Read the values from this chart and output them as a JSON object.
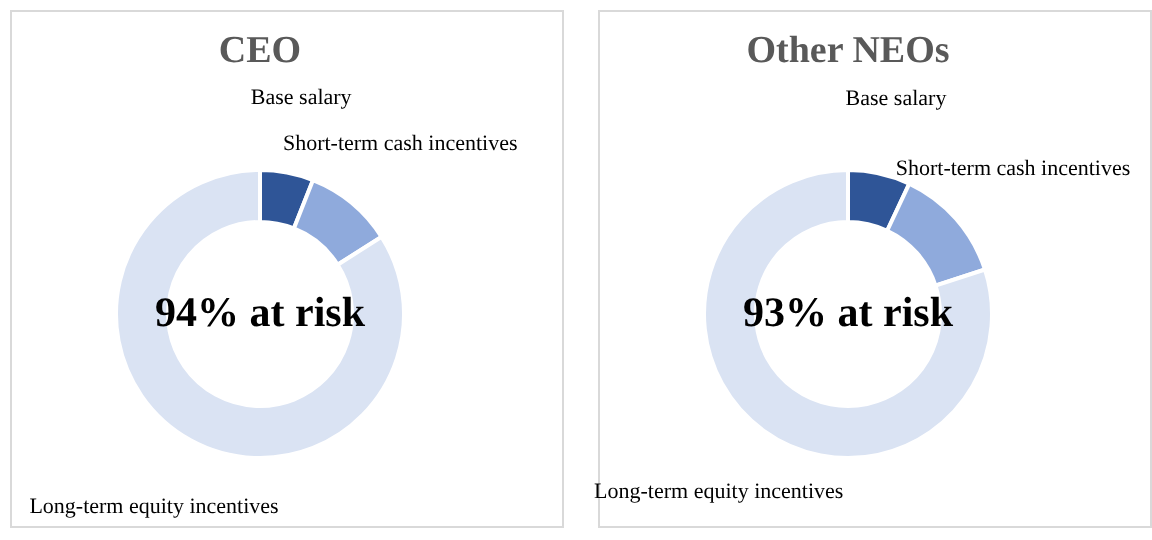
{
  "chart_data": [
    {
      "type": "donut",
      "title": "CEO",
      "categories": [
        "Base salary",
        "Short-term cash incentives",
        "Long-term equity incentives"
      ],
      "values": [
        6,
        10,
        84
      ],
      "colors": [
        "#2f5597",
        "#8faadc",
        "#dae3f3"
      ],
      "annotations": [
        "94% at risk"
      ],
      "legend": false
    },
    {
      "type": "donut",
      "title": "Other NEOs",
      "categories": [
        "Base salary",
        "Short-term cash incentives",
        "Long-term equity incentives"
      ],
      "values": [
        7,
        13,
        80
      ],
      "colors": [
        "#2f5597",
        "#8faadc",
        "#dae3f3"
      ],
      "annotations": [
        "93% at risk"
      ],
      "legend": false
    }
  ]
}
